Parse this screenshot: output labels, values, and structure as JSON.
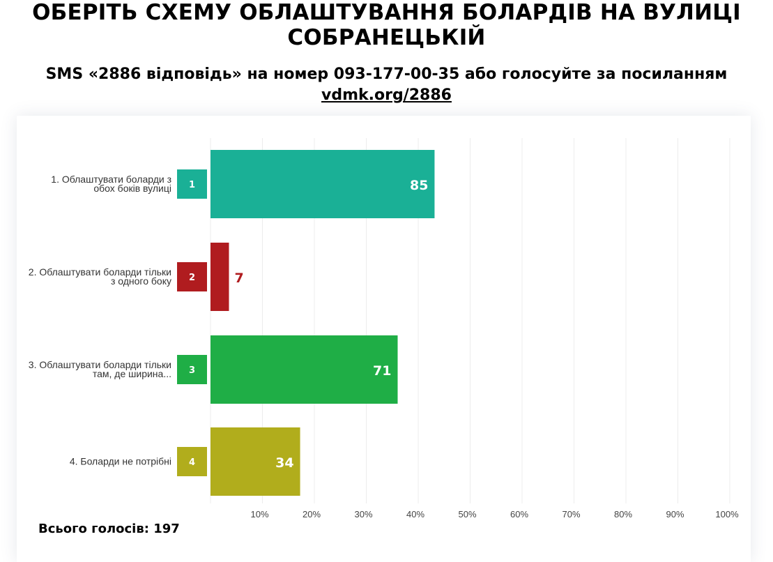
{
  "page": {
    "title": "ОБЕРІТЬ СХЕМУ ОБЛАШТУВАННЯ БОЛАРДІВ НА ВУЛИЦІ СОБРАНЕЦЬКІЙ",
    "subtitle_text": "SMS «2886 відповідь» на номер 093-177-00-35 або голосуйте за посиланням",
    "link_text": "vdmk.org/2886",
    "total_label": "Всього голосів: 197"
  },
  "chart_data": {
    "type": "bar",
    "orientation": "horizontal",
    "categories": [
      "1. Облаштувати боларди з обох боків вулиці",
      "2. Облаштувати боларди тільки з одного боку",
      "3. Облаштувати боларди тільки там, де ширина...",
      "4. Боларди не потрібні"
    ],
    "badges": [
      "1",
      "2",
      "3",
      "4"
    ],
    "values": [
      85,
      7,
      71,
      34
    ],
    "value_labels": [
      "85",
      "7",
      "71",
      "34"
    ],
    "total": 197,
    "colors": [
      "#1ab096",
      "#b01c1f",
      "#1fae46",
      "#b1ad1c"
    ],
    "value_label_colors": [
      "#ffffff",
      "#b01c1f",
      "#ffffff",
      "#ffffff"
    ],
    "xlim": [
      0,
      100
    ],
    "x_unit": "percent of total votes",
    "x_ticks": [
      "10%",
      "20%",
      "30%",
      "40%",
      "50%",
      "60%",
      "70%",
      "80%",
      "90%",
      "100%"
    ],
    "grid": true
  }
}
